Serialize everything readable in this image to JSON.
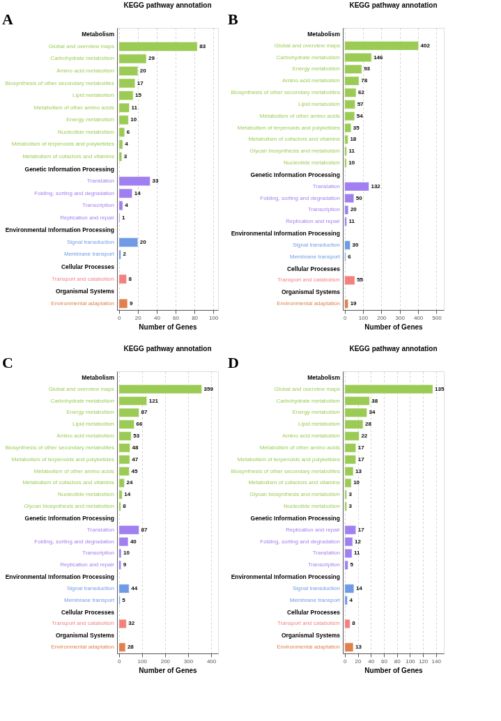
{
  "chart_data": [
    {
      "type": "bar",
      "orientation": "horizontal",
      "title": "KEGG pathway annotation",
      "xlabel": "Number of Genes",
      "annotations": [
        "A"
      ],
      "data_labels": true,
      "grid": "x",
      "xlim": [
        -2,
        105
      ],
      "xticks": [
        0,
        20,
        40,
        60,
        80,
        100
      ],
      "categories": [
        "Metabolism",
        "Global and overview maps",
        "Carbohydrate metabolism",
        "Amino acid metabolism",
        "Biosynthesis of other secondary metabolites",
        "Lipid metabolism",
        "Metabolism of other amino acids",
        "Energy metabolism",
        "Nucleotide metabolism",
        "Metabolism of terpenoids and polyketides",
        "Metabolism of cofactors and vitamins",
        "Genetic Information Processing",
        "Translation",
        "Folding, sorting and degradation",
        "Transcription",
        "Replication and repair",
        "Environmental Information Processing",
        "Signal transduction",
        "Membrane transport",
        "Cellular Processes",
        "Transport and catabolism",
        "Organismal Systems",
        "Environmental adaptation"
      ],
      "series": [
        {
          "color": "#9bcb55",
          "values": [
            null,
            83,
            29,
            20,
            17,
            15,
            11,
            10,
            6,
            4,
            3,
            null,
            null,
            null,
            null,
            null,
            null,
            null,
            null,
            null,
            null,
            null,
            null
          ]
        },
        {
          "color": "#a07ff0",
          "values": [
            null,
            null,
            null,
            null,
            null,
            null,
            null,
            null,
            null,
            null,
            null,
            null,
            33,
            14,
            4,
            1,
            null,
            null,
            null,
            null,
            null,
            null,
            null
          ]
        },
        {
          "color": "#6f9be6",
          "values": [
            null,
            null,
            null,
            null,
            null,
            null,
            null,
            null,
            null,
            null,
            null,
            null,
            null,
            null,
            null,
            null,
            null,
            20,
            2,
            null,
            null,
            null,
            null
          ]
        },
        {
          "color": "#f37f7f",
          "values": [
            null,
            null,
            null,
            null,
            null,
            null,
            null,
            null,
            null,
            null,
            null,
            null,
            null,
            null,
            null,
            null,
            null,
            null,
            null,
            null,
            8,
            null,
            null
          ]
        },
        {
          "color": "#e0804f",
          "values": [
            null,
            null,
            null,
            null,
            null,
            null,
            null,
            null,
            null,
            null,
            null,
            null,
            null,
            null,
            null,
            null,
            null,
            null,
            null,
            null,
            null,
            null,
            9
          ]
        }
      ]
    },
    {
      "type": "bar",
      "orientation": "horizontal",
      "title": "KEGG pathway annotation",
      "xlabel": "Number of Genes",
      "annotations": [
        "B"
      ],
      "data_labels": true,
      "grid": "x",
      "xlim": [
        -10,
        540
      ],
      "xticks": [
        0,
        100,
        200,
        300,
        400,
        500
      ],
      "categories": [
        "Metabolism",
        "Global and overview maps",
        "Carbohydrate metabolism",
        "Energy metabolism",
        "Amino acid metabolism",
        "Biosynthesis of other secondary metabolites",
        "Lipid metabolism",
        "Metabolism of other amino acids",
        "Metabolism of terpenoids and polyketides",
        "Metabolism of cofactors and vitamins",
        "Glycan biosynthesis and metabolism",
        "Nucleotide metabolism",
        "Genetic Information Processing",
        "Translation",
        "Folding, sorting and degradation",
        "Transcription",
        "Replication and repair",
        "Environmental Information Processing",
        "Signal transduction",
        "Membrane transport",
        "Cellular Processes",
        "Transport and catabolism",
        "Organismal Systems",
        "Environmental adaptation"
      ],
      "series": [
        {
          "color": "#9bcb55",
          "values": [
            null,
            402,
            146,
            93,
            78,
            62,
            57,
            54,
            35,
            18,
            11,
            10,
            null,
            null,
            null,
            null,
            null,
            null,
            null,
            null,
            null,
            null,
            null,
            null
          ]
        },
        {
          "color": "#a07ff0",
          "values": [
            null,
            null,
            null,
            null,
            null,
            null,
            null,
            null,
            null,
            null,
            null,
            null,
            null,
            132,
            50,
            20,
            11,
            null,
            null,
            null,
            null,
            null,
            null,
            null
          ]
        },
        {
          "color": "#6f9be6",
          "values": [
            null,
            null,
            null,
            null,
            null,
            null,
            null,
            null,
            null,
            null,
            null,
            null,
            null,
            null,
            null,
            null,
            null,
            null,
            30,
            6,
            null,
            null,
            null,
            null
          ]
        },
        {
          "color": "#f37f7f",
          "values": [
            null,
            null,
            null,
            null,
            null,
            null,
            null,
            null,
            null,
            null,
            null,
            null,
            null,
            null,
            null,
            null,
            null,
            null,
            null,
            null,
            null,
            55,
            null,
            null
          ]
        },
        {
          "color": "#e0804f",
          "values": [
            null,
            null,
            null,
            null,
            null,
            null,
            null,
            null,
            null,
            null,
            null,
            null,
            null,
            null,
            null,
            null,
            null,
            null,
            null,
            null,
            null,
            null,
            null,
            19
          ]
        }
      ]
    },
    {
      "type": "bar",
      "orientation": "horizontal",
      "title": "KEGG pathway annotation",
      "xlabel": "Number of Genes",
      "annotations": [
        "C"
      ],
      "data_labels": true,
      "grid": "x",
      "xlim": [
        -8,
        430
      ],
      "xticks": [
        0,
        100,
        200,
        300,
        400
      ],
      "categories": [
        "Metabolism",
        "Global and overview maps",
        "Carbohydrate metabolism",
        "Energy metabolism",
        "Lipid metabolism",
        "Amino acid metabolism",
        "Biosynthesis of other secondary metabolites",
        "Metabolism of terpenoids and polyketides",
        "Metabolism of other amino acids",
        "Metabolism of cofactors and vitamins",
        "Nucleotide metabolism",
        "Glycan biosynthesis and metabolism",
        "Genetic Information Processing",
        "Translation",
        "Folding, sorting and degradation",
        "Transcription",
        "Replication and repair",
        "Environmental Information Processing",
        "Signal transduction",
        "Membrane transport",
        "Cellular Processes",
        "Transport and catabolism",
        "Organismal Systems",
        "Environmental adaptation"
      ],
      "series": [
        {
          "color": "#9bcb55",
          "values": [
            null,
            359,
            121,
            87,
            66,
            53,
            48,
            47,
            45,
            24,
            14,
            8,
            null,
            null,
            null,
            null,
            null,
            null,
            null,
            null,
            null,
            null,
            null,
            null
          ]
        },
        {
          "color": "#a07ff0",
          "values": [
            null,
            null,
            null,
            null,
            null,
            null,
            null,
            null,
            null,
            null,
            null,
            null,
            null,
            87,
            40,
            10,
            9,
            null,
            null,
            null,
            null,
            null,
            null,
            null
          ]
        },
        {
          "color": "#6f9be6",
          "values": [
            null,
            null,
            null,
            null,
            null,
            null,
            null,
            null,
            null,
            null,
            null,
            null,
            null,
            null,
            null,
            null,
            null,
            null,
            44,
            5,
            null,
            null,
            null,
            null
          ]
        },
        {
          "color": "#f37f7f",
          "values": [
            null,
            null,
            null,
            null,
            null,
            null,
            null,
            null,
            null,
            null,
            null,
            null,
            null,
            null,
            null,
            null,
            null,
            null,
            null,
            null,
            null,
            32,
            null,
            null
          ]
        },
        {
          "color": "#e0804f",
          "values": [
            null,
            null,
            null,
            null,
            null,
            null,
            null,
            null,
            null,
            null,
            null,
            null,
            null,
            null,
            null,
            null,
            null,
            null,
            null,
            null,
            null,
            null,
            null,
            28
          ]
        }
      ]
    },
    {
      "type": "bar",
      "orientation": "horizontal",
      "title": "KEGG pathway annotation",
      "xlabel": "Number of Genes",
      "annotations": [
        "D"
      ],
      "data_labels": true,
      "grid": "x",
      "xlim": [
        -3,
        152
      ],
      "xticks": [
        0,
        20,
        40,
        60,
        80,
        100,
        120,
        140
      ],
      "categories": [
        "Metabolism",
        "Global and overview maps",
        "Carbohydrate metabolism",
        "Energy metabolism",
        "Lipid metabolism",
        "Amino acid metabolism",
        "Metabolism of other amino acids",
        "Metabolism of terpenoids and polyketides",
        "Biosynthesis of other secondary metabolites",
        "Metabolism of cofactors and vitamins",
        "Glycan biosynthesis and metabolism",
        "Nucleotide metabolism",
        "Genetic Information Processing",
        "Replication and repair",
        "Folding, sorting and degradation",
        "Translation",
        "Transcription",
        "Environmental Information Processing",
        "Signal transduction",
        "Membrane transport",
        "Cellular Processes",
        "Transport and catabolism",
        "Organismal Systems",
        "Environmental adaptation"
      ],
      "series": [
        {
          "color": "#9bcb55",
          "values": [
            null,
            135,
            38,
            34,
            28,
            22,
            17,
            17,
            13,
            10,
            3,
            3,
            null,
            null,
            null,
            null,
            null,
            null,
            null,
            null,
            null,
            null,
            null,
            null
          ]
        },
        {
          "color": "#a07ff0",
          "values": [
            null,
            null,
            null,
            null,
            null,
            null,
            null,
            null,
            null,
            null,
            null,
            null,
            null,
            17,
            12,
            11,
            5,
            null,
            null,
            null,
            null,
            null,
            null,
            null
          ]
        },
        {
          "color": "#6f9be6",
          "values": [
            null,
            null,
            null,
            null,
            null,
            null,
            null,
            null,
            null,
            null,
            null,
            null,
            null,
            null,
            null,
            null,
            null,
            null,
            14,
            4,
            null,
            null,
            null,
            null
          ]
        },
        {
          "color": "#f37f7f",
          "values": [
            null,
            null,
            null,
            null,
            null,
            null,
            null,
            null,
            null,
            null,
            null,
            null,
            null,
            null,
            null,
            null,
            null,
            null,
            null,
            null,
            null,
            8,
            null,
            null
          ]
        },
        {
          "color": "#e0804f",
          "values": [
            null,
            null,
            null,
            null,
            null,
            null,
            null,
            null,
            null,
            null,
            null,
            null,
            null,
            null,
            null,
            null,
            null,
            null,
            null,
            null,
            null,
            null,
            null,
            13
          ]
        }
      ]
    }
  ]
}
